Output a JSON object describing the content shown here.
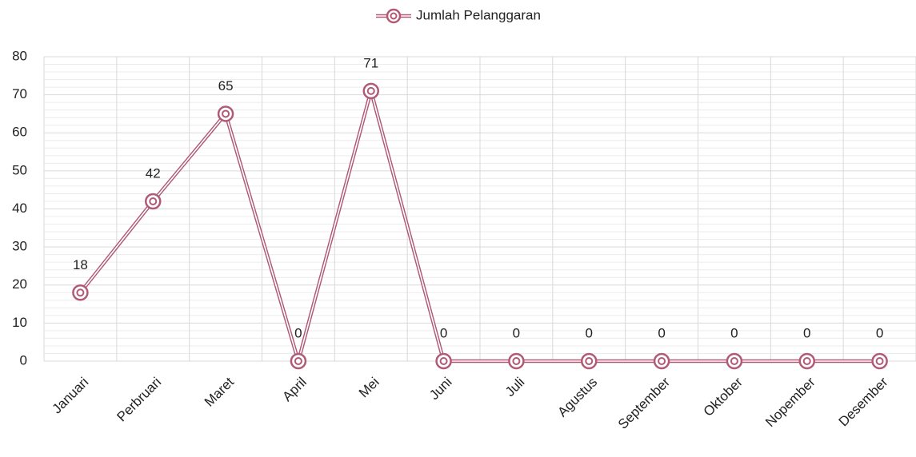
{
  "chart_data": {
    "type": "line",
    "categories": [
      "Januari",
      "Perbruari",
      "Maret",
      "April",
      "Mei",
      "Juni",
      "Juli",
      "Agustus",
      "September",
      "Oktober",
      "Nopember",
      "Desember"
    ],
    "series": [
      {
        "name": "Jumlah Pelanggaran",
        "color": "#b05a76",
        "values": [
          18,
          42,
          65,
          0,
          71,
          0,
          0,
          0,
          0,
          0,
          0,
          0
        ]
      }
    ],
    "ylim": [
      0,
      80
    ],
    "yticks": [
      0,
      10,
      20,
      30,
      40,
      50,
      60,
      70,
      80
    ],
    "grid": true,
    "legend": "top"
  }
}
